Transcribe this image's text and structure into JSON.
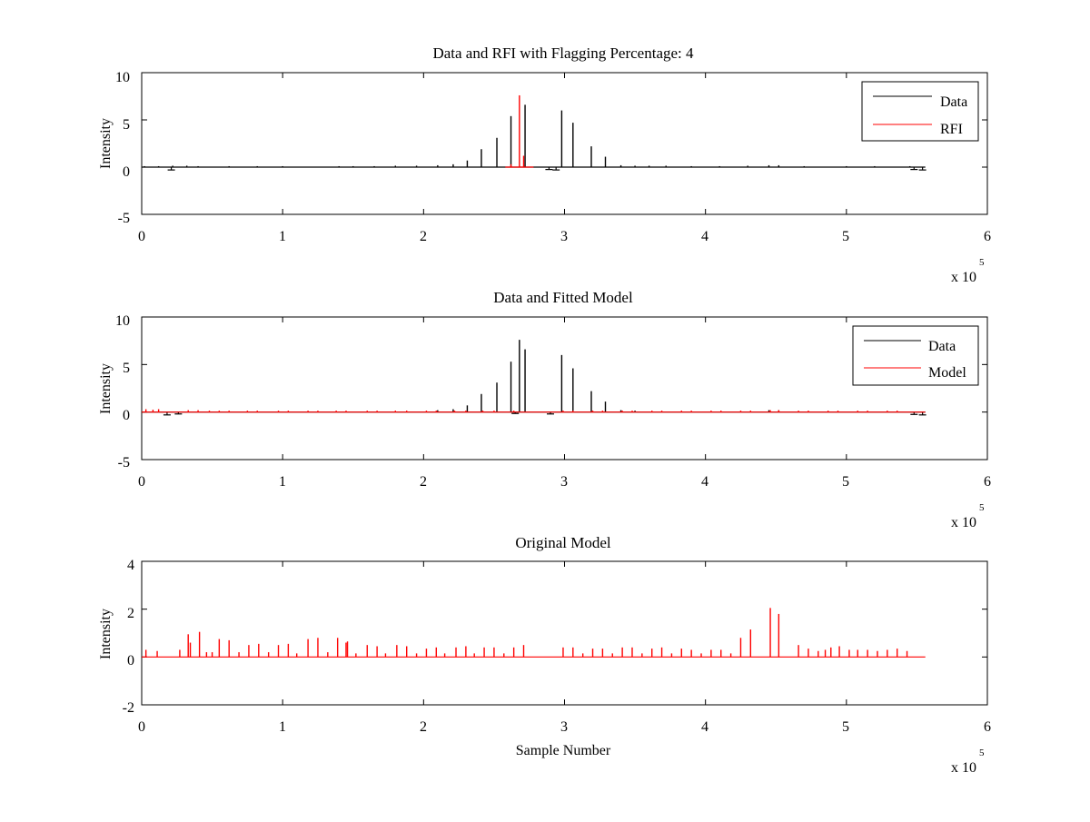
{
  "figure": {
    "background": "#ffffff",
    "colors": {
      "data": "#000000",
      "rfi": "#ff0000",
      "model": "#ff0000",
      "axes": "#000000"
    }
  },
  "chart_data": [
    {
      "type": "line",
      "title": "Data and RFI with Flagging Percentage: 4",
      "xlabel": "",
      "ylabel": "Intensity",
      "xlim": [
        0,
        600000
      ],
      "ylim": [
        -5,
        10
      ],
      "x_ticks": [
        "0",
        "1",
        "2",
        "3",
        "4",
        "5",
        "6"
      ],
      "y_ticks": [
        "-5",
        "0",
        "5",
        "10"
      ],
      "x_multiplier": {
        "base": "x 10",
        "exponent": "5"
      },
      "legend": {
        "placement": "top-right",
        "entries": [
          "Data",
          "RFI"
        ]
      },
      "series": [
        {
          "name": "Data",
          "color": "#000000",
          "baseline": 0,
          "x_end": 556000,
          "spikes": [
            [
              2000,
              0.1
            ],
            [
              12000,
              0.1
            ],
            [
              22000,
              0.15
            ],
            [
              32000,
              0.15
            ],
            [
              40000,
              0.1
            ],
            [
              62000,
              0.1
            ],
            [
              82000,
              0.1
            ],
            [
              100000,
              0.1
            ],
            [
              140000,
              0.1
            ],
            [
              150000,
              0.1
            ],
            [
              165000,
              0.1
            ],
            [
              180000,
              0.15
            ],
            [
              195000,
              0.15
            ],
            [
              210000,
              0.2
            ],
            [
              221000,
              0.3
            ],
            [
              231000,
              0.7
            ],
            [
              241000,
              1.9
            ],
            [
              252000,
              3.1
            ],
            [
              262000,
              5.4
            ],
            [
              272000,
              6.6
            ],
            [
              298000,
              6.0
            ],
            [
              306000,
              4.7
            ],
            [
              319000,
              2.2
            ],
            [
              329000,
              1.1
            ],
            [
              340000,
              0.2
            ],
            [
              350000,
              0.15
            ],
            [
              360000,
              0.15
            ],
            [
              372000,
              0.15
            ],
            [
              390000,
              0.1
            ],
            [
              410000,
              0.1
            ],
            [
              430000,
              0.15
            ],
            [
              445000,
              0.2
            ],
            [
              452000,
              0.2
            ],
            [
              470000,
              0.1
            ],
            [
              500000,
              0.1
            ],
            [
              520000,
              0.1
            ],
            [
              545000,
              0.1
            ]
          ],
          "dips": [
            [
              21000,
              -0.3
            ],
            [
              289000,
              -0.25
            ],
            [
              294000,
              -0.3
            ],
            [
              548000,
              -0.25
            ],
            [
              554000,
              -0.3
            ]
          ]
        },
        {
          "name": "RFI",
          "color": "#ff0000",
          "baseline": 0,
          "x_range": [
            258000,
            278000
          ],
          "spikes": [
            [
              262000,
              0.3
            ],
            [
              268000,
              7.6
            ],
            [
              271000,
              1.2
            ]
          ]
        }
      ]
    },
    {
      "type": "line",
      "title": "Data and Fitted Model",
      "xlabel": "",
      "ylabel": "Intensity",
      "xlim": [
        0,
        600000
      ],
      "ylim": [
        -5,
        10
      ],
      "x_ticks": [
        "0",
        "1",
        "2",
        "3",
        "4",
        "5",
        "6"
      ],
      "y_ticks": [
        "-5",
        "0",
        "5",
        "10"
      ],
      "x_multiplier": {
        "base": "x 10",
        "exponent": "5"
      },
      "legend": {
        "placement": "top-right",
        "entries": [
          "Data",
          "Model"
        ]
      },
      "series": [
        {
          "name": "Data",
          "color": "#000000",
          "baseline": 0,
          "x_end": 556000,
          "spikes": [
            [
              210000,
              0.2
            ],
            [
              221000,
              0.3
            ],
            [
              231000,
              0.7
            ],
            [
              241000,
              1.9
            ],
            [
              252000,
              3.1
            ],
            [
              262000,
              5.3
            ],
            [
              268000,
              7.6
            ],
            [
              272000,
              6.6
            ],
            [
              298000,
              6.0
            ],
            [
              306000,
              4.6
            ],
            [
              319000,
              2.2
            ],
            [
              329000,
              1.1
            ],
            [
              340000,
              0.2
            ],
            [
              350000,
              0.15
            ],
            [
              445000,
              0.2
            ],
            [
              452000,
              0.2
            ]
          ],
          "dips": [
            [
              18000,
              -0.3
            ],
            [
              26000,
              -0.2
            ],
            [
              265000,
              -0.15
            ],
            [
              290000,
              -0.2
            ],
            [
              548000,
              -0.25
            ],
            [
              554000,
              -0.3
            ]
          ]
        },
        {
          "name": "Model",
          "color": "#ff0000",
          "baseline": 0,
          "x_end": 556000,
          "spikes": [
            [
              3000,
              0.3
            ],
            [
              8000,
              0.25
            ],
            [
              12000,
              0.3
            ],
            [
              33000,
              0.2
            ],
            [
              40000,
              0.2
            ],
            [
              48000,
              0.15
            ],
            [
              55000,
              0.15
            ],
            [
              62000,
              0.15
            ],
            [
              75000,
              0.15
            ],
            [
              82000,
              0.15
            ],
            [
              97000,
              0.15
            ],
            [
              104000,
              0.15
            ],
            [
              118000,
              0.15
            ],
            [
              125000,
              0.15
            ],
            [
              138000,
              0.15
            ],
            [
              145000,
              0.15
            ],
            [
              160000,
              0.15
            ],
            [
              167000,
              0.15
            ],
            [
              180000,
              0.15
            ],
            [
              188000,
              0.15
            ],
            [
              202000,
              0.15
            ],
            [
              209000,
              0.15
            ],
            [
              222000,
              0.15
            ],
            [
              230000,
              0.15
            ],
            [
              242000,
              0.15
            ],
            [
              250000,
              0.15
            ],
            [
              264000,
              0.15
            ],
            [
              299000,
              0.15
            ],
            [
              306000,
              0.15
            ],
            [
              320000,
              0.15
            ],
            [
              327000,
              0.15
            ],
            [
              341000,
              0.15
            ],
            [
              348000,
              0.15
            ],
            [
              362000,
              0.15
            ],
            [
              369000,
              0.15
            ],
            [
              383000,
              0.15
            ],
            [
              390000,
              0.15
            ],
            [
              404000,
              0.15
            ],
            [
              411000,
              0.15
            ],
            [
              425000,
              0.15
            ],
            [
              432000,
              0.15
            ],
            [
              446000,
              0.2
            ],
            [
              452000,
              0.2
            ],
            [
              466000,
              0.15
            ],
            [
              473000,
              0.15
            ],
            [
              487000,
              0.15
            ],
            [
              494000,
              0.15
            ],
            [
              508000,
              0.15
            ],
            [
              515000,
              0.15
            ],
            [
              529000,
              0.15
            ],
            [
              536000,
              0.15
            ]
          ]
        }
      ]
    },
    {
      "type": "line",
      "title": "Original Model",
      "xlabel": "Sample Number",
      "ylabel": "Intensity",
      "xlim": [
        0,
        600000
      ],
      "ylim": [
        -2,
        4
      ],
      "x_ticks": [
        "0",
        "1",
        "2",
        "3",
        "4",
        "5",
        "6"
      ],
      "y_ticks": [
        "-2",
        "0",
        "2",
        "4"
      ],
      "x_multiplier": {
        "base": "x 10",
        "exponent": "5"
      },
      "legend": null,
      "series": [
        {
          "color": "#ff0000",
          "baseline": 0,
          "x_end": 556000,
          "spikes": [
            [
              3000,
              0.3
            ],
            [
              11000,
              0.25
            ],
            [
              27000,
              0.3
            ],
            [
              33000,
              0.95
            ],
            [
              34500,
              0.6
            ],
            [
              41000,
              1.05
            ],
            [
              46000,
              0.2
            ],
            [
              50000,
              0.2
            ],
            [
              55000,
              0.75
            ],
            [
              62000,
              0.7
            ],
            [
              69000,
              0.2
            ],
            [
              76000,
              0.5
            ],
            [
              83000,
              0.55
            ],
            [
              90000,
              0.2
            ],
            [
              97000,
              0.5
            ],
            [
              104000,
              0.55
            ],
            [
              110000,
              0.15
            ],
            [
              118000,
              0.75
            ],
            [
              125000,
              0.8
            ],
            [
              132000,
              0.2
            ],
            [
              139000,
              0.8
            ],
            [
              145000,
              0.6
            ],
            [
              146000,
              0.65
            ],
            [
              152000,
              0.15
            ],
            [
              160000,
              0.5
            ],
            [
              167000,
              0.45
            ],
            [
              173000,
              0.15
            ],
            [
              181000,
              0.5
            ],
            [
              188000,
              0.45
            ],
            [
              195000,
              0.15
            ],
            [
              202000,
              0.35
            ],
            [
              209000,
              0.4
            ],
            [
              215000,
              0.15
            ],
            [
              223000,
              0.4
            ],
            [
              230000,
              0.45
            ],
            [
              236000,
              0.15
            ],
            [
              243000,
              0.4
            ],
            [
              250000,
              0.4
            ],
            [
              257000,
              0.15
            ],
            [
              264000,
              0.4
            ],
            [
              271000,
              0.5
            ],
            [
              299000,
              0.4
            ],
            [
              306000,
              0.4
            ],
            [
              313000,
              0.15
            ],
            [
              320000,
              0.35
            ],
            [
              327000,
              0.35
            ],
            [
              334000,
              0.15
            ],
            [
              341000,
              0.4
            ],
            [
              348000,
              0.4
            ],
            [
              355000,
              0.15
            ],
            [
              362000,
              0.35
            ],
            [
              369000,
              0.4
            ],
            [
              376000,
              0.15
            ],
            [
              383000,
              0.35
            ],
            [
              390000,
              0.3
            ],
            [
              397000,
              0.15
            ],
            [
              404000,
              0.3
            ],
            [
              411000,
              0.3
            ],
            [
              418000,
              0.15
            ],
            [
              425000,
              0.8
            ],
            [
              432000,
              1.15
            ],
            [
              446000,
              2.05
            ],
            [
              452000,
              1.8
            ],
            [
              466000,
              0.5
            ],
            [
              473000,
              0.35
            ],
            [
              480000,
              0.25
            ],
            [
              485000,
              0.3
            ],
            [
              489000,
              0.4
            ],
            [
              495000,
              0.45
            ],
            [
              502000,
              0.3
            ],
            [
              508000,
              0.3
            ],
            [
              515000,
              0.3
            ],
            [
              522000,
              0.25
            ],
            [
              529000,
              0.3
            ],
            [
              536000,
              0.35
            ],
            [
              543000,
              0.25
            ]
          ]
        }
      ]
    }
  ]
}
